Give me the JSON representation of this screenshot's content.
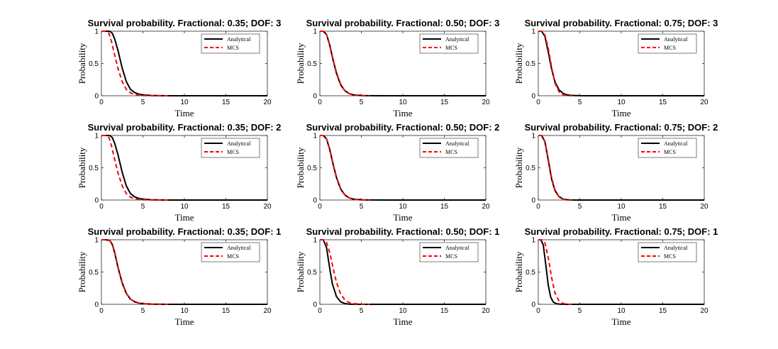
{
  "figure": {
    "background": "#ffffff",
    "colors": {
      "analytical": "#000000",
      "mcs": "#ff0000"
    }
  },
  "chart_data": [
    {
      "type": "line",
      "title": "Survival probability. Fractional: 0.35; DOF: 3",
      "xlabel": "Time",
      "ylabel": "Probability",
      "xlim": [
        0,
        20
      ],
      "ylim": [
        0,
        1
      ],
      "xticks": [
        "0",
        "5",
        "10",
        "15",
        "20"
      ],
      "yticks": [
        "0",
        "0.5",
        "1"
      ],
      "legend": {
        "position": "top-right",
        "entries": [
          "Analytical",
          "MCS"
        ]
      },
      "series": [
        {
          "name": "Analytical",
          "color": "#000000",
          "dash": "solid",
          "x": [
            0,
            0.5,
            1,
            1.3,
            1.6,
            2,
            2.5,
            3,
            3.5,
            4,
            4.5,
            5,
            6,
            7,
            8,
            10,
            15,
            20
          ],
          "y": [
            1,
            1,
            1,
            0.97,
            0.88,
            0.7,
            0.43,
            0.22,
            0.1,
            0.05,
            0.025,
            0.013,
            0.004,
            0.001,
            0,
            0,
            0,
            0
          ]
        },
        {
          "name": "MCS",
          "color": "#ff0000",
          "dash": "dashed",
          "x": [
            0,
            0.5,
            0.9,
            1.2,
            1.5,
            2,
            2.5,
            3,
            3.5,
            4,
            5,
            6,
            8
          ],
          "y": [
            1,
            1,
            0.97,
            0.85,
            0.68,
            0.42,
            0.22,
            0.1,
            0.045,
            0.02,
            0.004,
            0.001,
            0
          ]
        }
      ]
    },
    {
      "type": "line",
      "title": "Survival probability. Fractional: 0.50; DOF: 3",
      "xlabel": "Time",
      "ylabel": "Probability",
      "xlim": [
        0,
        20
      ],
      "ylim": [
        0,
        1
      ],
      "xticks": [
        "0",
        "5",
        "10",
        "15",
        "20"
      ],
      "yticks": [
        "0",
        "0.5",
        "1"
      ],
      "legend": {
        "position": "top-right",
        "entries": [
          "Analytical",
          "MCS"
        ]
      },
      "series": [
        {
          "name": "Analytical",
          "color": "#000000",
          "dash": "solid",
          "x": [
            0,
            0.4,
            0.8,
            1.2,
            1.6,
            2,
            2.5,
            3,
            3.5,
            4,
            5,
            6,
            8,
            20
          ],
          "y": [
            1,
            1,
            0.95,
            0.78,
            0.55,
            0.35,
            0.17,
            0.08,
            0.035,
            0.015,
            0.003,
            0.001,
            0,
            0
          ]
        },
        {
          "name": "MCS",
          "color": "#ff0000",
          "dash": "dashed",
          "x": [
            0,
            0.4,
            0.8,
            1.2,
            1.6,
            2,
            2.5,
            3,
            3.5,
            4,
            5,
            6
          ],
          "y": [
            1,
            1,
            0.95,
            0.79,
            0.56,
            0.36,
            0.18,
            0.08,
            0.035,
            0.015,
            0.003,
            0
          ]
        }
      ]
    },
    {
      "type": "line",
      "title": "Survival probability. Fractional: 0.75; DOF: 3",
      "xlabel": "Time",
      "ylabel": "Probability",
      "xlim": [
        0,
        20
      ],
      "ylim": [
        0,
        1
      ],
      "xticks": [
        "0",
        "5",
        "10",
        "15",
        "20"
      ],
      "yticks": [
        "0",
        "0.5",
        "1"
      ],
      "legend": {
        "position": "top-right",
        "entries": [
          "Analytical",
          "MCS"
        ]
      },
      "series": [
        {
          "name": "Analytical",
          "color": "#000000",
          "dash": "solid",
          "x": [
            0,
            0.4,
            0.8,
            1.2,
            1.6,
            2,
            2.5,
            3,
            3.5,
            4,
            5,
            6,
            20
          ],
          "y": [
            1,
            1,
            0.92,
            0.68,
            0.42,
            0.22,
            0.09,
            0.035,
            0.013,
            0.005,
            0.001,
            0,
            0
          ]
        },
        {
          "name": "MCS",
          "color": "#ff0000",
          "dash": "dashed",
          "x": [
            0,
            0.4,
            0.8,
            1.2,
            1.6,
            2,
            2.5,
            3,
            3.5,
            4
          ],
          "y": [
            1,
            1,
            0.94,
            0.74,
            0.45,
            0.2,
            0.06,
            0.015,
            0.003,
            0
          ]
        }
      ]
    },
    {
      "type": "line",
      "title": "Survival probability. Fractional: 0.35; DOF: 2",
      "xlabel": "Time",
      "ylabel": "Probability",
      "xlim": [
        0,
        20
      ],
      "ylim": [
        0,
        1
      ],
      "xticks": [
        "0",
        "5",
        "10",
        "15",
        "20"
      ],
      "yticks": [
        "0",
        "0.5",
        "1"
      ],
      "legend": {
        "position": "top-right",
        "entries": [
          "Analytical",
          "MCS"
        ]
      },
      "series": [
        {
          "name": "Analytical",
          "color": "#000000",
          "dash": "solid",
          "x": [
            0,
            0.5,
            1,
            1.3,
            1.6,
            2,
            2.5,
            3,
            3.5,
            4,
            4.5,
            5,
            6,
            7,
            8,
            10,
            15,
            20
          ],
          "y": [
            1,
            1,
            1,
            0.97,
            0.88,
            0.7,
            0.43,
            0.22,
            0.1,
            0.05,
            0.025,
            0.013,
            0.004,
            0.001,
            0,
            0,
            0,
            0
          ]
        },
        {
          "name": "MCS",
          "color": "#ff0000",
          "dash": "dashed",
          "x": [
            0,
            0.5,
            0.9,
            1.2,
            1.5,
            2,
            2.5,
            3,
            3.5,
            4,
            5,
            6,
            8
          ],
          "y": [
            1,
            1,
            0.97,
            0.85,
            0.68,
            0.42,
            0.22,
            0.1,
            0.045,
            0.02,
            0.004,
            0.001,
            0
          ]
        }
      ]
    },
    {
      "type": "line",
      "title": "Survival probability. Fractional: 0.50; DOF: 2",
      "xlabel": "Time",
      "ylabel": "Probability",
      "xlim": [
        0,
        20
      ],
      "ylim": [
        0,
        1
      ],
      "xticks": [
        "0",
        "5",
        "10",
        "15",
        "20"
      ],
      "yticks": [
        "0",
        "0.5",
        "1"
      ],
      "legend": {
        "position": "top-right",
        "entries": [
          "Analytical",
          "MCS"
        ]
      },
      "series": [
        {
          "name": "Analytical",
          "color": "#000000",
          "dash": "solid",
          "x": [
            0,
            0.4,
            0.8,
            1.2,
            1.6,
            2,
            2.5,
            3,
            3.5,
            4,
            5,
            6,
            8,
            20
          ],
          "y": [
            1,
            1,
            0.95,
            0.78,
            0.55,
            0.35,
            0.17,
            0.08,
            0.035,
            0.015,
            0.003,
            0.001,
            0,
            0
          ]
        },
        {
          "name": "MCS",
          "color": "#ff0000",
          "dash": "dashed",
          "x": [
            0,
            0.4,
            0.8,
            1.2,
            1.6,
            2,
            2.5,
            3,
            3.5,
            4,
            5,
            6
          ],
          "y": [
            1,
            1,
            0.95,
            0.79,
            0.56,
            0.36,
            0.18,
            0.08,
            0.035,
            0.015,
            0.003,
            0
          ]
        }
      ]
    },
    {
      "type": "line",
      "title": "Survival probability. Fractional: 0.75; DOF: 2",
      "xlabel": "Time",
      "ylabel": "Probability",
      "xlim": [
        0,
        20
      ],
      "ylim": [
        0,
        1
      ],
      "xticks": [
        "0",
        "5",
        "10",
        "15",
        "20"
      ],
      "yticks": [
        "0",
        "0.5",
        "1"
      ],
      "legend": {
        "position": "top-right",
        "entries": [
          "Analytical",
          "MCS"
        ]
      },
      "series": [
        {
          "name": "Analytical",
          "color": "#000000",
          "dash": "solid",
          "x": [
            0,
            0.4,
            0.8,
            1.2,
            1.6,
            2,
            2.5,
            3,
            3.5,
            4,
            5,
            20
          ],
          "y": [
            1,
            1,
            0.9,
            0.62,
            0.33,
            0.15,
            0.05,
            0.015,
            0.004,
            0.001,
            0,
            0
          ]
        },
        {
          "name": "MCS",
          "color": "#ff0000",
          "dash": "dashed",
          "x": [
            0,
            0.4,
            0.8,
            1.2,
            1.6,
            2,
            2.5,
            3,
            3.5,
            4
          ],
          "y": [
            1,
            1,
            0.91,
            0.64,
            0.35,
            0.16,
            0.05,
            0.013,
            0.003,
            0
          ]
        }
      ]
    },
    {
      "type": "line",
      "title": "Survival probability. Fractional: 0.35; DOF: 1",
      "xlabel": "Time",
      "ylabel": "Probability",
      "xlim": [
        0,
        20
      ],
      "ylim": [
        0,
        1
      ],
      "xticks": [
        "0",
        "5",
        "10",
        "15",
        "20"
      ],
      "yticks": [
        "0",
        "0.5",
        "1"
      ],
      "legend": {
        "position": "top-right",
        "entries": [
          "Analytical",
          "MCS"
        ]
      },
      "series": [
        {
          "name": "Analytical",
          "color": "#000000",
          "dash": "solid",
          "x": [
            0,
            0.5,
            1,
            1.3,
            1.6,
            2,
            2.5,
            3,
            3.5,
            4,
            4.5,
            5,
            6,
            7,
            8,
            20
          ],
          "y": [
            1,
            1,
            0.99,
            0.93,
            0.8,
            0.57,
            0.33,
            0.17,
            0.08,
            0.04,
            0.02,
            0.01,
            0.003,
            0.001,
            0,
            0
          ]
        },
        {
          "name": "MCS",
          "color": "#ff0000",
          "dash": "dashed",
          "x": [
            0,
            0.5,
            1,
            1.3,
            1.6,
            2,
            2.5,
            3,
            3.5,
            4,
            4.5,
            5,
            6,
            7,
            8
          ],
          "y": [
            1,
            1,
            0.99,
            0.94,
            0.81,
            0.58,
            0.34,
            0.17,
            0.08,
            0.04,
            0.02,
            0.01,
            0.003,
            0.001,
            0
          ]
        }
      ]
    },
    {
      "type": "line",
      "title": "Survival probability. Fractional: 0.50; DOF: 1",
      "xlabel": "Time",
      "ylabel": "Probability",
      "xlim": [
        0,
        20
      ],
      "ylim": [
        0,
        1
      ],
      "xticks": [
        "0",
        "5",
        "10",
        "15",
        "20"
      ],
      "yticks": [
        "0",
        "0.5",
        "1"
      ],
      "legend": {
        "position": "top-right",
        "entries": [
          "Analytical",
          "MCS"
        ]
      },
      "series": [
        {
          "name": "Analytical",
          "color": "#000000",
          "dash": "solid",
          "x": [
            0,
            0.4,
            0.8,
            1.2,
            1.5,
            2,
            2.5,
            3,
            3.5,
            4,
            5,
            20
          ],
          "y": [
            1,
            1,
            0.88,
            0.55,
            0.32,
            0.12,
            0.04,
            0.012,
            0.003,
            0.001,
            0,
            0
          ]
        },
        {
          "name": "MCS",
          "color": "#ff0000",
          "dash": "dashed",
          "x": [
            0,
            0.4,
            0.8,
            1.2,
            1.6,
            2,
            2.5,
            3,
            3.5,
            4,
            5,
            6
          ],
          "y": [
            1,
            1,
            0.96,
            0.8,
            0.56,
            0.34,
            0.16,
            0.07,
            0.03,
            0.012,
            0.002,
            0
          ]
        }
      ]
    },
    {
      "type": "line",
      "title": "Survival probability. Fractional: 0.75; DOF: 1",
      "xlabel": "Time",
      "ylabel": "Probability",
      "xlim": [
        0,
        20
      ],
      "ylim": [
        0,
        1
      ],
      "xticks": [
        "0",
        "5",
        "10",
        "15",
        "20"
      ],
      "yticks": [
        "0",
        "0.5",
        "1"
      ],
      "legend": {
        "position": "top-right",
        "entries": [
          "Analytical",
          "MCS"
        ]
      },
      "series": [
        {
          "name": "Analytical",
          "color": "#000000",
          "dash": "solid",
          "x": [
            0,
            0.3,
            0.6,
            0.9,
            1.2,
            1.5,
            1.8,
            2.2,
            2.6,
            3,
            4,
            20
          ],
          "y": [
            1,
            1,
            0.92,
            0.62,
            0.3,
            0.11,
            0.035,
            0.008,
            0.002,
            0,
            0,
            0
          ]
        },
        {
          "name": "MCS",
          "color": "#ff0000",
          "dash": "dashed",
          "x": [
            0,
            0.4,
            0.8,
            1.2,
            1.6,
            2,
            2.5,
            3,
            3.5,
            4
          ],
          "y": [
            1,
            1,
            0.95,
            0.73,
            0.42,
            0.18,
            0.05,
            0.012,
            0.002,
            0
          ]
        }
      ]
    }
  ]
}
